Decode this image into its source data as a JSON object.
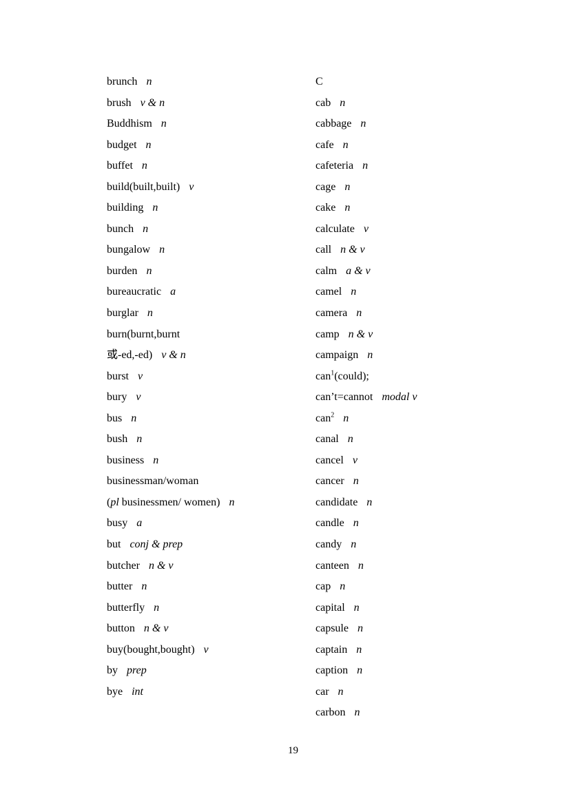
{
  "page": {
    "number": "19",
    "background_color": "#ffffff",
    "text_color": "#000000"
  },
  "left_column": [
    [
      {
        "t": "brunch"
      },
      {
        "t": "n",
        "i": true,
        "gap": true
      }
    ],
    [
      {
        "t": "brush"
      },
      {
        "t": "v & n",
        "i": true,
        "gap": true
      }
    ],
    [
      {
        "t": "Buddhism"
      },
      {
        "t": "n",
        "i": true,
        "gap": true
      }
    ],
    [
      {
        "t": "budget"
      },
      {
        "t": "n",
        "i": true,
        "gap": true
      }
    ],
    [
      {
        "t": "buffet"
      },
      {
        "t": "n",
        "i": true,
        "gap": true
      }
    ],
    [
      {
        "t": "build(built,built)"
      },
      {
        "t": "v",
        "i": true,
        "gap": true
      }
    ],
    [
      {
        "t": "building"
      },
      {
        "t": "n",
        "i": true,
        "gap": true
      }
    ],
    [
      {
        "t": "bunch"
      },
      {
        "t": "n",
        "i": true,
        "gap": true
      }
    ],
    [
      {
        "t": "bungalow"
      },
      {
        "t": "n",
        "i": true,
        "gap": true
      }
    ],
    [
      {
        "t": "burden"
      },
      {
        "t": "n",
        "i": true,
        "gap": true
      }
    ],
    [
      {
        "t": "bureaucratic"
      },
      {
        "t": "a",
        "i": true,
        "gap": true
      }
    ],
    [
      {
        "t": "burglar"
      },
      {
        "t": "n",
        "i": true,
        "gap": true
      }
    ],
    [
      {
        "t": "burn(burnt,burnt"
      }
    ],
    [
      {
        "t": "或-ed,-ed)"
      },
      {
        "t": "v & n",
        "i": true,
        "gap": true
      }
    ],
    [
      {
        "t": "burst"
      },
      {
        "t": "v",
        "i": true,
        "gap": true
      }
    ],
    [
      {
        "t": "bury"
      },
      {
        "t": "v",
        "i": true,
        "gap": true
      }
    ],
    [
      {
        "t": "bus"
      },
      {
        "t": "n",
        "i": true,
        "gap": true
      }
    ],
    [
      {
        "t": "bush"
      },
      {
        "t": "n",
        "i": true,
        "gap": true
      }
    ],
    [
      {
        "t": "business"
      },
      {
        "t": "n",
        "i": true,
        "gap": true
      }
    ],
    [
      {
        "t": "businessman/woman"
      }
    ],
    [
      {
        "t": "("
      },
      {
        "t": "pl",
        "i": true
      },
      {
        "t": " businessmen/ women)"
      },
      {
        "t": "n",
        "i": true,
        "gap": true
      }
    ],
    [
      {
        "t": "busy"
      },
      {
        "t": "a",
        "i": true,
        "gap": true
      }
    ],
    [
      {
        "t": "but"
      },
      {
        "t": "conj & prep",
        "i": true,
        "gap": true
      }
    ],
    [
      {
        "t": "butcher"
      },
      {
        "t": "n & v",
        "i": true,
        "gap": true
      }
    ],
    [
      {
        "t": "butter"
      },
      {
        "t": "n",
        "i": true,
        "gap": true
      }
    ],
    [
      {
        "t": "butterfly"
      },
      {
        "t": "n",
        "i": true,
        "gap": true
      }
    ],
    [
      {
        "t": "button"
      },
      {
        "t": "n & v",
        "i": true,
        "gap": true
      }
    ],
    [
      {
        "t": "buy(bought,bought)"
      },
      {
        "t": "v",
        "i": true,
        "gap": true
      }
    ],
    [
      {
        "t": "by"
      },
      {
        "t": "prep",
        "i": true,
        "gap": true
      }
    ],
    [
      {
        "t": "bye"
      },
      {
        "t": "int",
        "i": true,
        "gap": true
      }
    ]
  ],
  "right_column": [
    [
      {
        "t": "C"
      }
    ],
    [
      {
        "t": "cab"
      },
      {
        "t": "n",
        "i": true,
        "gap": true
      }
    ],
    [
      {
        "t": "cabbage"
      },
      {
        "t": "n",
        "i": true,
        "gap": true
      }
    ],
    [
      {
        "t": "cafe"
      },
      {
        "t": "n",
        "i": true,
        "gap": true
      }
    ],
    [
      {
        "t": "cafeteria"
      },
      {
        "t": "n",
        "i": true,
        "gap": true
      }
    ],
    [
      {
        "t": "cage"
      },
      {
        "t": "n",
        "i": true,
        "gap": true
      }
    ],
    [
      {
        "t": "cake"
      },
      {
        "t": "n",
        "i": true,
        "gap": true
      }
    ],
    [
      {
        "t": "calculate"
      },
      {
        "t": "v",
        "i": true,
        "gap": true
      }
    ],
    [
      {
        "t": "call"
      },
      {
        "t": "n & v",
        "i": true,
        "gap": true
      }
    ],
    [
      {
        "t": "calm"
      },
      {
        "t": "a & v",
        "i": true,
        "gap": true
      }
    ],
    [
      {
        "t": "camel"
      },
      {
        "t": "n",
        "i": true,
        "gap": true
      }
    ],
    [
      {
        "t": "camera"
      },
      {
        "t": "n",
        "i": true,
        "gap": true
      }
    ],
    [
      {
        "t": "camp"
      },
      {
        "t": "n & v",
        "i": true,
        "gap": true
      }
    ],
    [
      {
        "t": "campaign"
      },
      {
        "t": "n",
        "i": true,
        "gap": true
      }
    ],
    [
      {
        "t": "can"
      },
      {
        "t": "1",
        "sup": true
      },
      {
        "t": "(could);"
      }
    ],
    [
      {
        "t": "can’t=cannot"
      },
      {
        "t": "modal v",
        "i": true,
        "gap": true
      }
    ],
    [
      {
        "t": "can"
      },
      {
        "t": "2",
        "sup": true
      },
      {
        "t": "n",
        "i": true,
        "gap": true
      }
    ],
    [
      {
        "t": "canal"
      },
      {
        "t": "n",
        "i": true,
        "gap": true
      }
    ],
    [
      {
        "t": "cancel"
      },
      {
        "t": "v",
        "i": true,
        "gap": true
      }
    ],
    [
      {
        "t": "cancer"
      },
      {
        "t": "n",
        "i": true,
        "gap": true
      }
    ],
    [
      {
        "t": "candidate"
      },
      {
        "t": "n",
        "i": true,
        "gap": true
      }
    ],
    [
      {
        "t": "candle"
      },
      {
        "t": "n",
        "i": true,
        "gap": true
      }
    ],
    [
      {
        "t": "candy"
      },
      {
        "t": "n",
        "i": true,
        "gap": true
      }
    ],
    [
      {
        "t": "canteen"
      },
      {
        "t": "n",
        "i": true,
        "gap": true
      }
    ],
    [
      {
        "t": "cap"
      },
      {
        "t": "n",
        "i": true,
        "gap": true
      }
    ],
    [
      {
        "t": "capital"
      },
      {
        "t": "n",
        "i": true,
        "gap": true
      }
    ],
    [
      {
        "t": "capsule"
      },
      {
        "t": "n",
        "i": true,
        "gap": true
      }
    ],
    [
      {
        "t": "captain"
      },
      {
        "t": "n",
        "i": true,
        "gap": true
      }
    ],
    [
      {
        "t": "caption"
      },
      {
        "t": "n",
        "i": true,
        "gap": true
      }
    ],
    [
      {
        "t": "car"
      },
      {
        "t": "n",
        "i": true,
        "gap": true
      }
    ],
    [
      {
        "t": "carbon"
      },
      {
        "t": "n",
        "i": true,
        "gap": true
      }
    ]
  ]
}
